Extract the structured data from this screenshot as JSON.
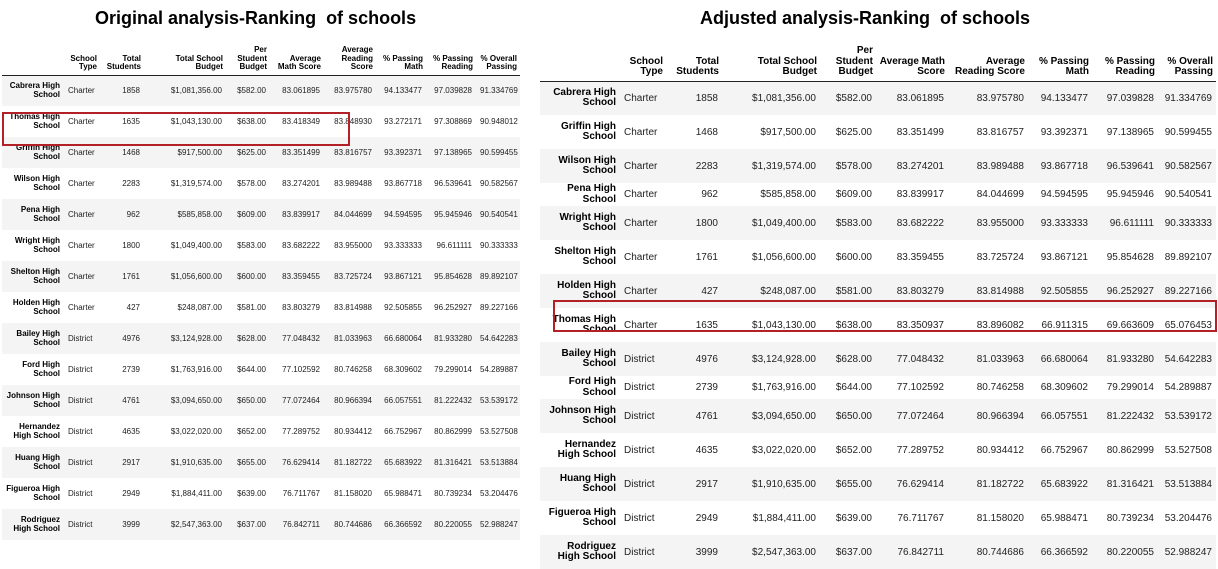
{
  "left": {
    "title": "Original analysis-Ranking  of schools",
    "columns": [
      "",
      "School Type",
      "Total Students",
      "Total School Budget",
      "Per Student Budget",
      "Average Math Score",
      "Average Reading Score",
      "% Passing Math",
      "% Passing Reading",
      "% Overall Passing"
    ],
    "rows": [
      [
        "Cabrera High School",
        "Charter",
        "1858",
        "$1,081,356.00",
        "$582.00",
        "83.061895",
        "83.975780",
        "94.133477",
        "97.039828",
        "91.334769"
      ],
      [
        "Thomas High School",
        "Charter",
        "1635",
        "$1,043,130.00",
        "$638.00",
        "83.418349",
        "83.848930",
        "93.272171",
        "97.308869",
        "90.948012"
      ],
      [
        "Griffin High School",
        "Charter",
        "1468",
        "$917,500.00",
        "$625.00",
        "83.351499",
        "83.816757",
        "93.392371",
        "97.138965",
        "90.599455"
      ],
      [
        "Wilson High School",
        "Charter",
        "2283",
        "$1,319,574.00",
        "$578.00",
        "83.274201",
        "83.989488",
        "93.867718",
        "96.539641",
        "90.582567"
      ],
      [
        "Pena High School",
        "Charter",
        "962",
        "$585,858.00",
        "$609.00",
        "83.839917",
        "84.044699",
        "94.594595",
        "95.945946",
        "90.540541"
      ],
      [
        "Wright High School",
        "Charter",
        "1800",
        "$1,049,400.00",
        "$583.00",
        "83.682222",
        "83.955000",
        "93.333333",
        "96.611111",
        "90.333333"
      ],
      [
        "Shelton High School",
        "Charter",
        "1761",
        "$1,056,600.00",
        "$600.00",
        "83.359455",
        "83.725724",
        "93.867121",
        "95.854628",
        "89.892107"
      ],
      [
        "Holden High School",
        "Charter",
        "427",
        "$248,087.00",
        "$581.00",
        "83.803279",
        "83.814988",
        "92.505855",
        "96.252927",
        "89.227166"
      ],
      [
        "Bailey High School",
        "District",
        "4976",
        "$3,124,928.00",
        "$628.00",
        "77.048432",
        "81.033963",
        "66.680064",
        "81.933280",
        "54.642283"
      ],
      [
        "Ford High School",
        "District",
        "2739",
        "$1,763,916.00",
        "$644.00",
        "77.102592",
        "80.746258",
        "68.309602",
        "79.299014",
        "54.289887"
      ],
      [
        "Johnson High School",
        "District",
        "4761",
        "$3,094,650.00",
        "$650.00",
        "77.072464",
        "80.966394",
        "66.057551",
        "81.222432",
        "53.539172"
      ],
      [
        "Hernandez High School",
        "District",
        "4635",
        "$3,022,020.00",
        "$652.00",
        "77.289752",
        "80.934412",
        "66.752967",
        "80.862999",
        "53.527508"
      ],
      [
        "Huang High School",
        "District",
        "2917",
        "$1,910,635.00",
        "$655.00",
        "76.629414",
        "81.182722",
        "65.683922",
        "81.316421",
        "53.513884"
      ],
      [
        "Figueroa High School",
        "District",
        "2949",
        "$1,884,411.00",
        "$639.00",
        "76.711767",
        "81.158020",
        "65.988471",
        "80.739234",
        "53.204476"
      ],
      [
        "Rodriguez High School",
        "District",
        "3999",
        "$2,547,363.00",
        "$637.00",
        "76.842711",
        "80.744686",
        "66.366592",
        "80.220055",
        "52.988247"
      ]
    ]
  },
  "right": {
    "title": "Adjusted analysis-Ranking  of schools",
    "columns": [
      "",
      "School Type",
      "Total Students",
      "Total School Budget",
      "Per Student Budget",
      "Average Math Score",
      "Average Reading Score",
      "% Passing Math",
      "% Passing Reading",
      "% Overall Passing"
    ],
    "rows": [
      [
        "Cabrera High School",
        "Charter",
        "1858",
        "$1,081,356.00",
        "$582.00",
        "83.061895",
        "83.975780",
        "94.133477",
        "97.039828",
        "91.334769"
      ],
      [
        "Griffin High School",
        "Charter",
        "1468",
        "$917,500.00",
        "$625.00",
        "83.351499",
        "83.816757",
        "93.392371",
        "97.138965",
        "90.599455"
      ],
      [
        "Wilson High School",
        "Charter",
        "2283",
        "$1,319,574.00",
        "$578.00",
        "83.274201",
        "83.989488",
        "93.867718",
        "96.539641",
        "90.582567"
      ],
      [
        "Pena High School",
        "Charter",
        "962",
        "$585,858.00",
        "$609.00",
        "83.839917",
        "84.044699",
        "94.594595",
        "95.945946",
        "90.540541"
      ],
      [
        "Wright High School",
        "Charter",
        "1800",
        "$1,049,400.00",
        "$583.00",
        "83.682222",
        "83.955000",
        "93.333333",
        "96.611111",
        "90.333333"
      ],
      [
        "Shelton High School",
        "Charter",
        "1761",
        "$1,056,600.00",
        "$600.00",
        "83.359455",
        "83.725724",
        "93.867121",
        "95.854628",
        "89.892107"
      ],
      [
        "Holden High School",
        "Charter",
        "427",
        "$248,087.00",
        "$581.00",
        "83.803279",
        "83.814988",
        "92.505855",
        "96.252927",
        "89.227166"
      ],
      [
        "Thomas High School",
        "Charter",
        "1635",
        "$1,043,130.00",
        "$638.00",
        "83.350937",
        "83.896082",
        "66.911315",
        "69.663609",
        "65.076453"
      ],
      [
        "Bailey High School",
        "District",
        "4976",
        "$3,124,928.00",
        "$628.00",
        "77.048432",
        "81.033963",
        "66.680064",
        "81.933280",
        "54.642283"
      ],
      [
        "Ford High School",
        "District",
        "2739",
        "$1,763,916.00",
        "$644.00",
        "77.102592",
        "80.746258",
        "68.309602",
        "79.299014",
        "54.289887"
      ],
      [
        "Johnson High School",
        "District",
        "4761",
        "$3,094,650.00",
        "$650.00",
        "77.072464",
        "80.966394",
        "66.057551",
        "81.222432",
        "53.539172"
      ],
      [
        "Hernandez High School",
        "District",
        "4635",
        "$3,022,020.00",
        "$652.00",
        "77.289752",
        "80.934412",
        "66.752967",
        "80.862999",
        "53.527508"
      ],
      [
        "Huang High School",
        "District",
        "2917",
        "$1,910,635.00",
        "$655.00",
        "76.629414",
        "81.182722",
        "65.683922",
        "81.316421",
        "53.513884"
      ],
      [
        "Figueroa High School",
        "District",
        "2949",
        "$1,884,411.00",
        "$639.00",
        "76.711767",
        "81.158020",
        "65.988471",
        "80.739234",
        "53.204476"
      ],
      [
        "Rodriguez High School",
        "District",
        "3999",
        "$2,547,363.00",
        "$637.00",
        "76.842711",
        "80.744686",
        "66.366592",
        "80.220055",
        "52.988247"
      ]
    ]
  },
  "highlight_color": "#b32025",
  "highlighted_school": "Thomas High School"
}
